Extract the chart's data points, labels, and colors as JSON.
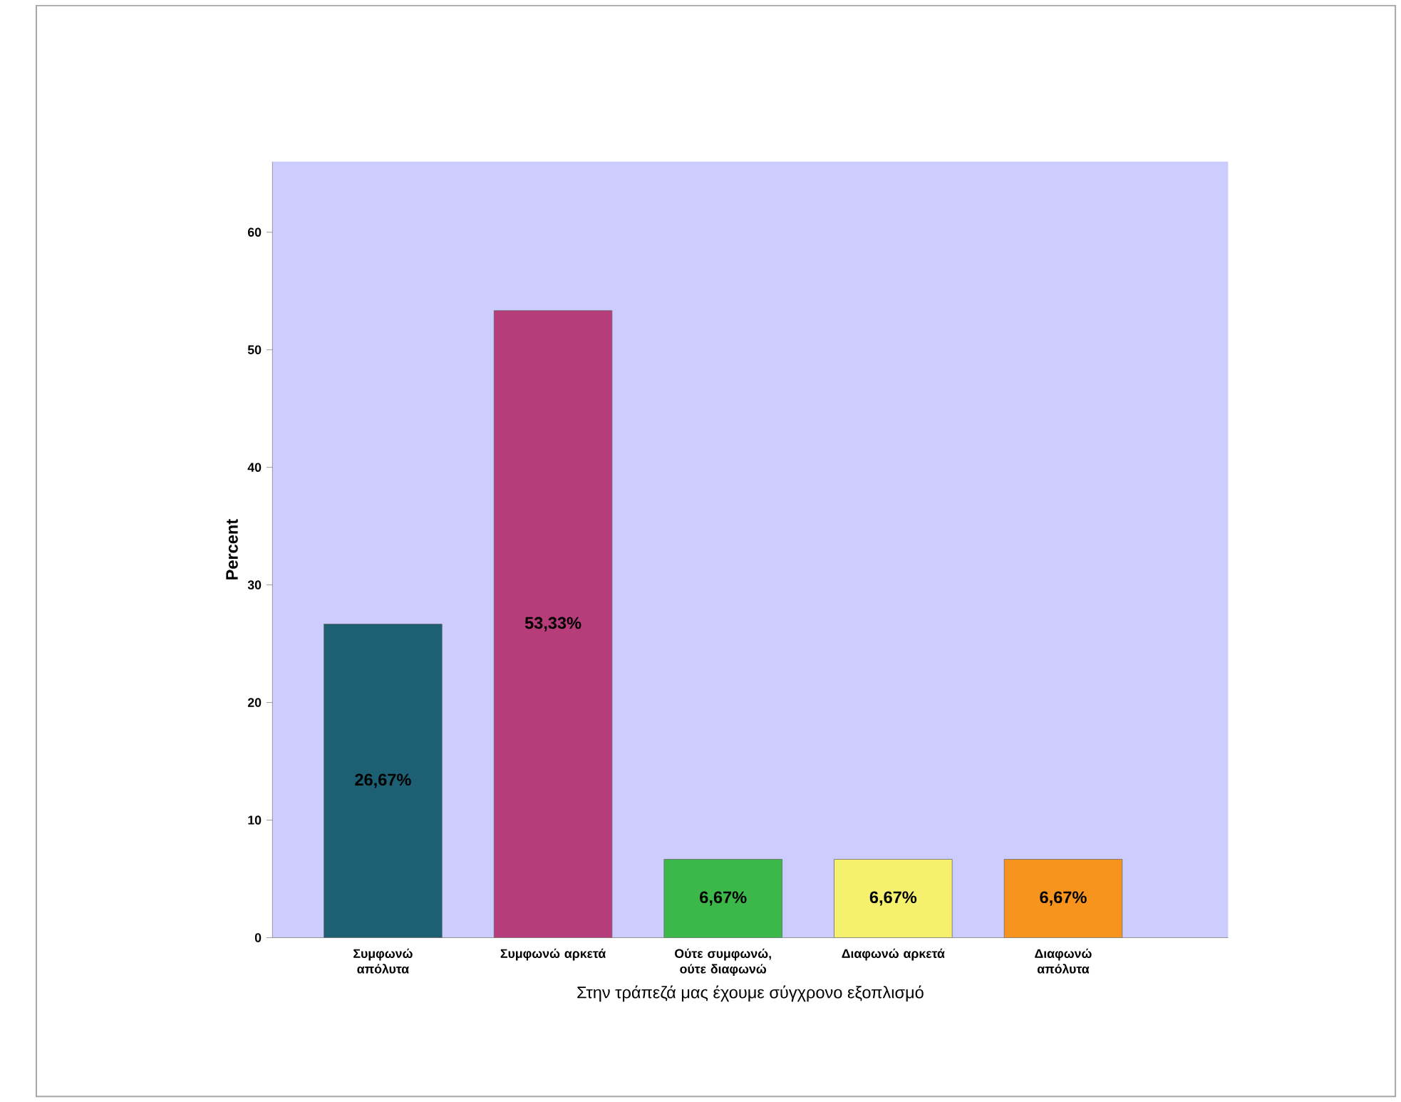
{
  "chart_data": {
    "type": "bar",
    "categories": [
      "Συμφωνώ απόλυτα",
      "Συμφωνώ αρκετά",
      "Ούτε συμφωνώ, ούτε διαφωνώ",
      "Διαφωνώ αρκετά",
      "Διαφωνώ απόλυτα"
    ],
    "values": [
      26.67,
      53.33,
      6.67,
      6.67,
      6.67
    ],
    "colors": [
      "#1d5f73",
      "#b63c7a",
      "#3cb84a",
      "#f5f06e",
      "#f7941d"
    ],
    "value_labels": [
      "26,67%",
      "53,33%",
      "6,67%",
      "6,67%",
      "6,67%"
    ],
    "xlabel": "Στην τράπεζά μας έχουμε σύγχρονο εξοπλισμό",
    "ylabel": "Percent",
    "ylim": [
      0,
      66
    ],
    "yticks": [
      0,
      10,
      20,
      30,
      40,
      50,
      60
    ],
    "grid": false
  }
}
